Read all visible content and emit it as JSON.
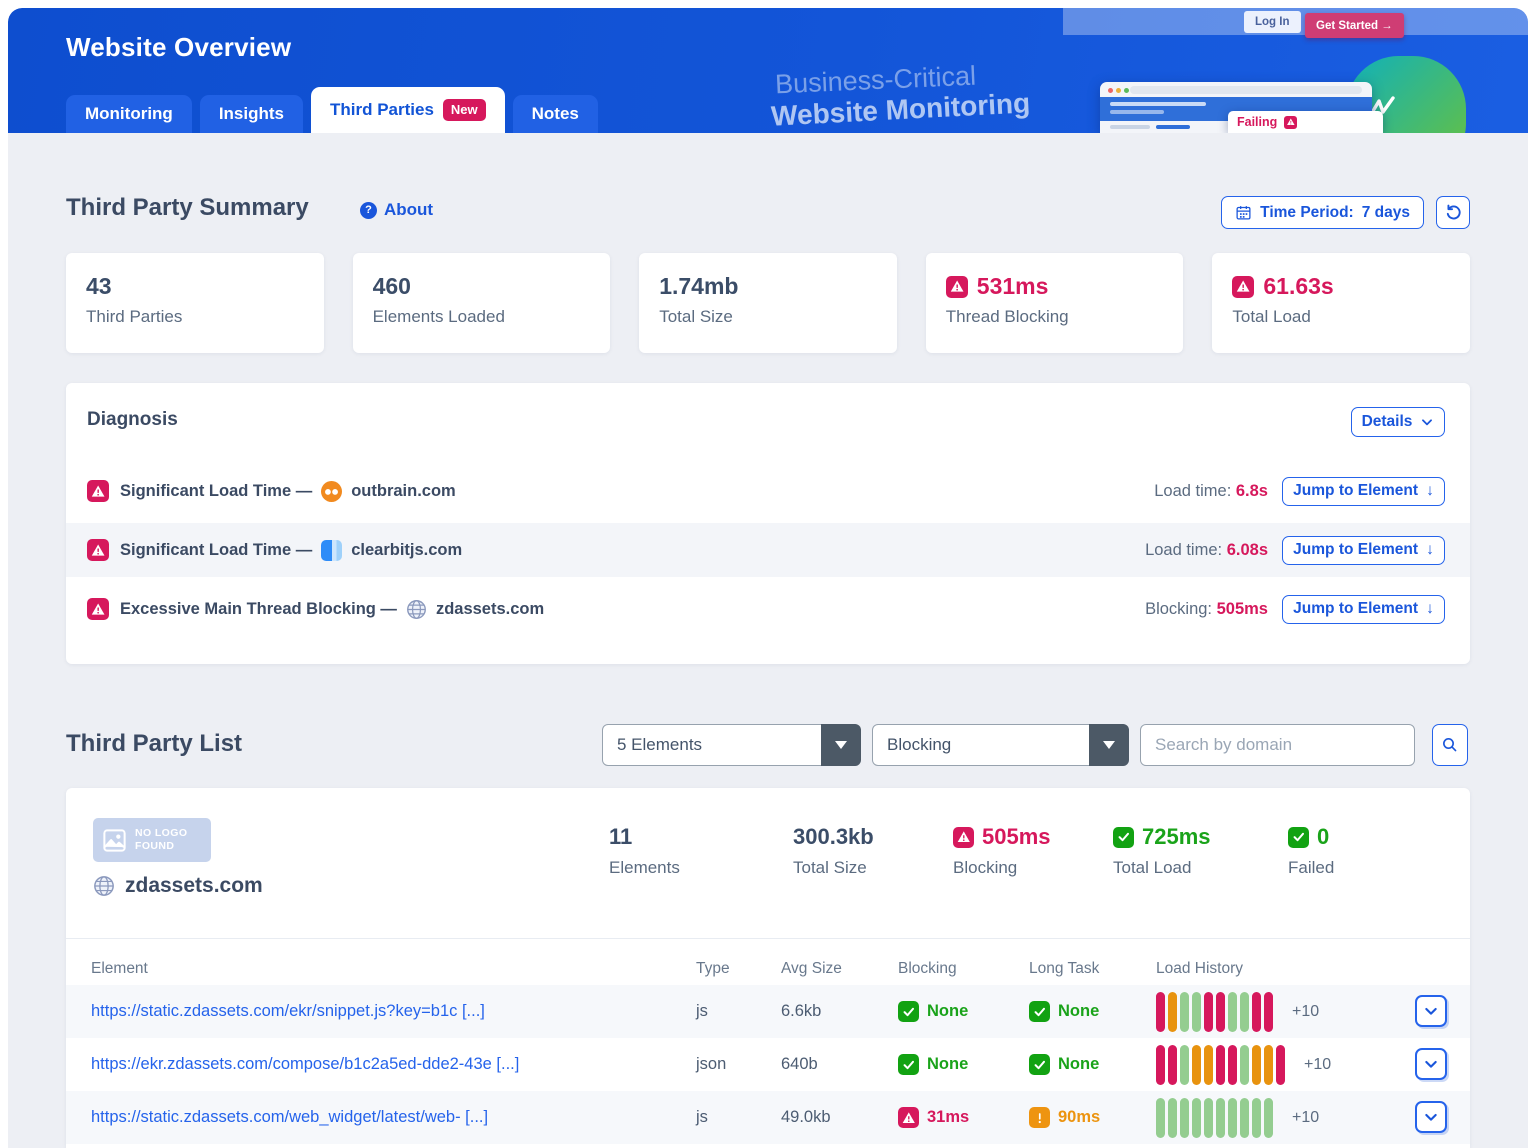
{
  "colors": {
    "accent_blue": "#1a56db",
    "header_blue": "#1355d8",
    "alert_crimson": "#d6185c",
    "ok_green": "#1aa31a",
    "caution_orange": "#ec9410",
    "bar_green": "#94cd90"
  },
  "header": {
    "title": "Website Overview",
    "tabs": [
      {
        "label": "Monitoring",
        "active": false
      },
      {
        "label": "Insights",
        "active": false
      },
      {
        "label": "Third Parties",
        "badge": "New",
        "active": true
      },
      {
        "label": "Notes",
        "active": false
      }
    ],
    "hero": {
      "log_in": "Log In",
      "get_started": "Get Started →",
      "headline_1": "Business-Critical",
      "headline_2": "Website Monitoring",
      "failing": "Failing"
    }
  },
  "summary": {
    "title": "Third Party Summary",
    "about_label": "About",
    "time_period_label": "Time Period:",
    "time_period_value": "7 days",
    "cards": [
      {
        "value": "43",
        "label": "Third Parties",
        "status": "plain"
      },
      {
        "value": "460",
        "label": "Elements Loaded",
        "status": "plain"
      },
      {
        "value": "1.74mb",
        "label": "Total Size",
        "status": "plain"
      },
      {
        "value": "531ms",
        "label": "Thread Blocking",
        "status": "warning"
      },
      {
        "value": "61.63s",
        "label": "Total Load",
        "status": "warning"
      }
    ]
  },
  "diagnosis": {
    "title": "Diagnosis",
    "details_label": "Details",
    "rows": [
      {
        "issue": "Significant Load Time —",
        "domain": "outbrain.com",
        "icon": "outbrain-logo",
        "metric_label": "Load time:",
        "metric_value": "6.8s",
        "action": "Jump to Element"
      },
      {
        "issue": "Significant Load Time —",
        "domain": "clearbitjs.com",
        "icon": "clearbit-logo",
        "metric_label": "Load time:",
        "metric_value": "6.08s",
        "action": "Jump to Element"
      },
      {
        "issue": "Excessive Main Thread Blocking —",
        "domain": "zdassets.com",
        "icon": "globe",
        "metric_label": "Blocking:",
        "metric_value": "505ms",
        "action": "Jump to Element"
      }
    ]
  },
  "third_party_list": {
    "title": "Third Party List",
    "filters": {
      "elements": "5 Elements",
      "sort": "Blocking",
      "search_placeholder": "Search by domain"
    },
    "card": {
      "no_logo_line1": "NO LOGO",
      "no_logo_line2": "FOUND",
      "domain": "zdassets.com",
      "stats": [
        {
          "value": "11",
          "label": "Elements",
          "status": "plain"
        },
        {
          "value": "300.3kb",
          "label": "Total Size",
          "status": "plain"
        },
        {
          "value": "505ms",
          "label": "Blocking",
          "status": "warning"
        },
        {
          "value": "725ms",
          "label": "Total Load",
          "status": "ok"
        },
        {
          "value": "0",
          "label": "Failed",
          "status": "ok"
        }
      ],
      "table": {
        "headers": [
          "Element",
          "Type",
          "Avg Size",
          "Blocking",
          "Long Task",
          "Load History"
        ],
        "rows": [
          {
            "url": "https://static.zdassets.com/ekr/snippet.js?key=b1c [...]",
            "type": "js",
            "avg_size": "6.6kb",
            "blocking": "None",
            "blocking_status": "ok",
            "long_task": "None",
            "long_task_status": "ok",
            "history": [
              "crimson",
              "orange",
              "green",
              "green",
              "crimson",
              "crimson",
              "green",
              "green",
              "crimson",
              "crimson"
            ],
            "history_more": "+10"
          },
          {
            "url": "https://ekr.zdassets.com/compose/b1c2a5ed-dde2-43e [...]",
            "type": "json",
            "avg_size": "640b",
            "blocking": "None",
            "blocking_status": "ok",
            "long_task": "None",
            "long_task_status": "ok",
            "history": [
              "crimson",
              "crimson",
              "green",
              "orange",
              "orange",
              "crimson",
              "crimson",
              "green",
              "orange",
              "orange",
              "crimson"
            ],
            "history_more": "+10"
          },
          {
            "url": "https://static.zdassets.com/web_widget/latest/web- [...]",
            "type": "js",
            "avg_size": "49.0kb",
            "blocking": "31ms",
            "blocking_status": "warn",
            "long_task": "90ms",
            "long_task_status": "caution",
            "history": [
              "green",
              "green",
              "green",
              "green",
              "green",
              "green",
              "green",
              "green",
              "green",
              "green"
            ],
            "history_more": "+10"
          }
        ]
      }
    }
  }
}
